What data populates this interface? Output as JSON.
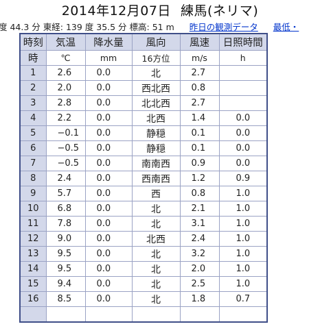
{
  "title": {
    "date": "2014年12月07日",
    "place": "練馬(ネリマ)"
  },
  "info": {
    "lat": "度 44.3 分",
    "lon": "東経:  139 度 35.5 分",
    "elev": "標高:  51 m",
    "prev_link": "昨日の観測データ",
    "latest_link": "最低・"
  },
  "headers": {
    "hour": "時刻",
    "temp": "気温",
    "precip": "降水量",
    "wind_dir": "風向",
    "wind_speed": "風速",
    "sunshine": "日照時間"
  },
  "units": {
    "hour": "時",
    "temp": "℃",
    "precip": "mm",
    "wind_dir": "16方位",
    "wind_speed": "m/s",
    "sunshine": "h"
  },
  "rows": [
    {
      "hour": "1",
      "temp": "2.6",
      "precip": "0.0",
      "dir": "北",
      "speed": "2.7",
      "sun": ""
    },
    {
      "hour": "2",
      "temp": "2.0",
      "precip": "0.0",
      "dir": "西北西",
      "speed": "0.8",
      "sun": ""
    },
    {
      "hour": "3",
      "temp": "2.8",
      "precip": "0.0",
      "dir": "北北西",
      "speed": "2.7",
      "sun": ""
    },
    {
      "hour": "4",
      "temp": "2.2",
      "precip": "0.0",
      "dir": "北西",
      "speed": "1.4",
      "sun": "0.0"
    },
    {
      "hour": "5",
      "temp": "−0.1",
      "precip": "0.0",
      "dir": "静穏",
      "speed": "0.1",
      "sun": "0.0"
    },
    {
      "hour": "6",
      "temp": "−0.5",
      "precip": "0.0",
      "dir": "静穏",
      "speed": "0.1",
      "sun": "0.0"
    },
    {
      "hour": "7",
      "temp": "−0.5",
      "precip": "0.0",
      "dir": "南南西",
      "speed": "0.9",
      "sun": "0.0"
    },
    {
      "hour": "8",
      "temp": "2.4",
      "precip": "0.0",
      "dir": "西南西",
      "speed": "1.2",
      "sun": "0.9"
    },
    {
      "hour": "9",
      "temp": "5.7",
      "precip": "0.0",
      "dir": "西",
      "speed": "0.8",
      "sun": "1.0"
    },
    {
      "hour": "10",
      "temp": "6.8",
      "precip": "0.0",
      "dir": "北",
      "speed": "2.1",
      "sun": "1.0"
    },
    {
      "hour": "11",
      "temp": "7.8",
      "precip": "0.0",
      "dir": "北",
      "speed": "3.1",
      "sun": "1.0"
    },
    {
      "hour": "12",
      "temp": "9.0",
      "precip": "0.0",
      "dir": "北西",
      "speed": "2.4",
      "sun": "1.0"
    },
    {
      "hour": "13",
      "temp": "9.5",
      "precip": "0.0",
      "dir": "北",
      "speed": "3.2",
      "sun": "1.0"
    },
    {
      "hour": "14",
      "temp": "9.5",
      "precip": "0.0",
      "dir": "北",
      "speed": "2.0",
      "sun": "1.0"
    },
    {
      "hour": "15",
      "temp": "9.4",
      "precip": "0.0",
      "dir": "北",
      "speed": "2.5",
      "sun": "1.0"
    },
    {
      "hour": "16",
      "temp": "8.5",
      "precip": "0.0",
      "dir": "北",
      "speed": "1.8",
      "sun": "0.7"
    },
    {
      "hour": "",
      "temp": "",
      "precip": "",
      "dir": "",
      "speed": "",
      "sun": ""
    }
  ]
}
